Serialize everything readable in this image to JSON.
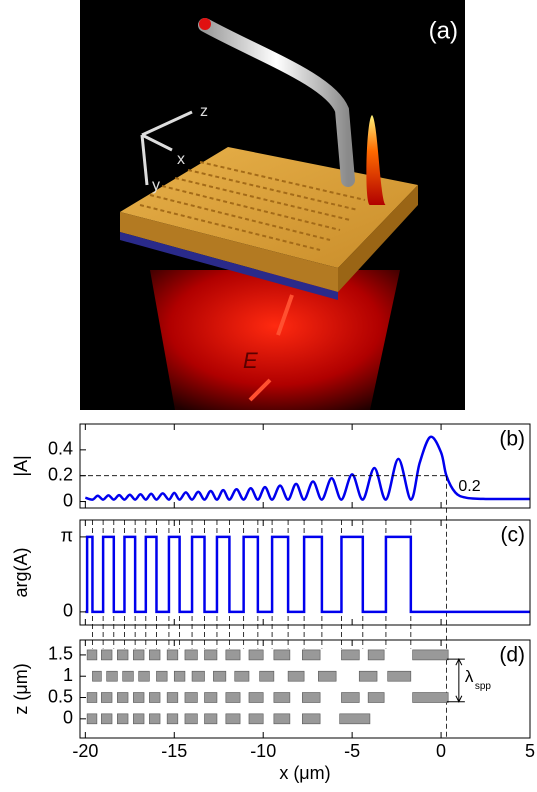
{
  "image": {
    "panel_label": "(a)",
    "axis_labels": [
      "z",
      "x",
      "y"
    ],
    "field_label": "E"
  },
  "chart_data": [
    {
      "type": "line",
      "panel_label": "(b)",
      "ylabel": "|A|",
      "xlim": [
        -20.3,
        5
      ],
      "ylim": [
        -0.05,
        0.6
      ],
      "yticks": [
        0,
        0.2,
        0.4
      ],
      "color": "#0000ee",
      "x": [
        -20,
        -19.6,
        -19.3,
        -19.0,
        -18.7,
        -18.4,
        -18.1,
        -17.8,
        -17.5,
        -17.2,
        -16.9,
        -16.6,
        -16.3,
        -16.0,
        -15.65,
        -15.3,
        -15.0,
        -14.7,
        -14.35,
        -14.0,
        -13.65,
        -13.3,
        -12.95,
        -12.6,
        -12.25,
        -11.9,
        -11.5,
        -11.1,
        -10.7,
        -10.3,
        -9.9,
        -9.5,
        -9.05,
        -8.6,
        -8.15,
        -7.7,
        -7.2,
        -6.7,
        -6.15,
        -5.6,
        -5.0,
        -4.4,
        -3.75,
        -3.1,
        -2.4,
        -1.7,
        -1.2,
        -0.6,
        0,
        0.3,
        0.8,
        1.4,
        2.5,
        5
      ],
      "values": [
        0.03,
        0.015,
        0.045,
        0.015,
        0.048,
        0.015,
        0.05,
        0.015,
        0.053,
        0.015,
        0.056,
        0.015,
        0.06,
        0.015,
        0.063,
        0.015,
        0.067,
        0.015,
        0.071,
        0.015,
        0.076,
        0.015,
        0.082,
        0.015,
        0.088,
        0.015,
        0.095,
        0.015,
        0.103,
        0.015,
        0.112,
        0.015,
        0.123,
        0.015,
        0.137,
        0.015,
        0.155,
        0.015,
        0.18,
        0.015,
        0.21,
        0.015,
        0.26,
        0.015,
        0.33,
        0.015,
        0.3,
        0.5,
        0.38,
        0.2,
        0.07,
        0.03,
        0.02,
        0.02
      ],
      "annotation": {
        "text": "0.2",
        "x": 0.3,
        "y": 0.2
      }
    },
    {
      "type": "step",
      "panel_label": "(c)",
      "ylabel": "arg(A)",
      "xlim": [
        -20.3,
        5
      ],
      "ylim": [
        -0.55,
        3.85
      ],
      "yticks": [
        0,
        {
          "value": 3.1416,
          "label": "π"
        }
      ],
      "color": "#0000ee",
      "x": [
        -20,
        -19.9,
        -19.9,
        -19.6,
        -19.6,
        -19.0,
        -19.0,
        -18.4,
        -18.4,
        -17.8,
        -17.8,
        -17.2,
        -17.2,
        -16.6,
        -16.6,
        -16.0,
        -16.0,
        -15.3,
        -15.3,
        -14.7,
        -14.7,
        -14.0,
        -14.0,
        -13.3,
        -13.3,
        -12.6,
        -12.6,
        -11.9,
        -11.9,
        -11.1,
        -11.1,
        -10.3,
        -10.3,
        -9.5,
        -9.5,
        -8.6,
        -8.6,
        -7.7,
        -7.7,
        -6.7,
        -6.7,
        -5.6,
        -5.6,
        -4.4,
        -4.4,
        -3.1,
        -3.1,
        -1.7,
        -1.7,
        5
      ],
      "values": [
        0,
        0,
        3.1416,
        3.1416,
        0,
        0,
        3.1416,
        3.1416,
        0,
        0,
        3.1416,
        3.1416,
        0,
        0,
        3.1416,
        3.1416,
        0,
        0,
        3.1416,
        3.1416,
        0,
        0,
        3.1416,
        3.1416,
        0,
        0,
        3.1416,
        3.1416,
        0,
        0,
        3.1416,
        3.1416,
        0,
        0,
        3.1416,
        3.1416,
        0,
        0,
        3.1416,
        3.1416,
        0,
        0,
        3.1416,
        3.1416,
        0,
        0,
        3.1416,
        3.1416,
        0,
        0
      ],
      "guides": [
        -19.6,
        -19.0,
        -18.4,
        -17.8,
        -17.2,
        -16.6,
        -16.0,
        -15.3,
        -14.7,
        -14.0,
        -13.3,
        -12.6,
        -11.9,
        -11.1,
        -10.3,
        -9.5,
        -8.6,
        -7.7,
        -6.7,
        -5.6,
        -4.4,
        -3.1,
        -1.7
      ]
    },
    {
      "type": "blocks",
      "panel_label": "(d)",
      "ylabel": "z (μm)",
      "xlabel": "x (μm)",
      "xlim": [
        -20.3,
        5
      ],
      "ylim": [
        -0.45,
        1.85
      ],
      "xticks": [
        -20,
        -15,
        -10,
        -5,
        0,
        5
      ],
      "yticks": [
        0,
        0.5,
        1,
        1.5
      ],
      "color": "#999999",
      "rows": [
        {
          "z": 0,
          "blocks": [
            [
              -19.9,
              -19.35
            ],
            [
              -19.1,
              -18.5
            ],
            [
              -18.2,
              -17.6
            ],
            [
              -17.3,
              -16.7
            ],
            [
              -16.4,
              -15.8
            ],
            [
              -15.4,
              -14.8
            ],
            [
              -14.4,
              -13.7
            ],
            [
              -13.3,
              -12.6
            ],
            [
              -12.1,
              -11.3
            ],
            [
              -10.8,
              -10.0
            ],
            [
              -9.4,
              -8.5
            ],
            [
              -7.8,
              -6.8
            ],
            [
              -5.7,
              -4.0
            ]
          ]
        },
        {
          "z": 0.5,
          "blocks": [
            [
              -19.9,
              -19.35
            ],
            [
              -19.1,
              -18.5
            ],
            [
              -18.2,
              -17.6
            ],
            [
              -17.3,
              -16.7
            ],
            [
              -16.4,
              -15.8
            ],
            [
              -15.4,
              -14.8
            ],
            [
              -14.4,
              -13.7
            ],
            [
              -13.3,
              -12.6
            ],
            [
              -12.1,
              -11.3
            ],
            [
              -10.8,
              -10.0
            ],
            [
              -9.4,
              -8.5
            ],
            [
              -7.8,
              -6.8
            ],
            [
              -5.6,
              -4.6
            ],
            [
              -4.1,
              -3.2
            ],
            [
              -1.6,
              0.4
            ]
          ]
        },
        {
          "z": 1,
          "blocks": [
            [
              -19.6,
              -19.1
            ],
            [
              -18.8,
              -18.2
            ],
            [
              -17.9,
              -17.3
            ],
            [
              -17.0,
              -16.4
            ],
            [
              -16.0,
              -15.4
            ],
            [
              -15.0,
              -14.4
            ],
            [
              -14.0,
              -13.3
            ],
            [
              -12.8,
              -12.1
            ],
            [
              -11.6,
              -10.8
            ],
            [
              -10.2,
              -9.4
            ],
            [
              -8.6,
              -7.7
            ],
            [
              -6.9,
              -5.9
            ],
            [
              -4.6,
              -3.6
            ],
            [
              -3.0,
              -1.7
            ]
          ]
        },
        {
          "z": 1.5,
          "blocks": [
            [
              -19.9,
              -19.35
            ],
            [
              -19.1,
              -18.5
            ],
            [
              -18.2,
              -17.6
            ],
            [
              -17.3,
              -16.7
            ],
            [
              -16.4,
              -15.8
            ],
            [
              -15.4,
              -14.8
            ],
            [
              -14.4,
              -13.7
            ],
            [
              -13.3,
              -12.6
            ],
            [
              -12.1,
              -11.3
            ],
            [
              -10.8,
              -10.0
            ],
            [
              -9.4,
              -8.5
            ],
            [
              -7.8,
              -6.8
            ],
            [
              -5.6,
              -4.6
            ],
            [
              -4.1,
              -3.2
            ],
            [
              -1.6,
              0.4
            ]
          ]
        }
      ],
      "annotation": {
        "symbol": "λ",
        "subscript": "spp",
        "x": 1,
        "z": [
          0.4,
          1.4
        ]
      }
    }
  ]
}
